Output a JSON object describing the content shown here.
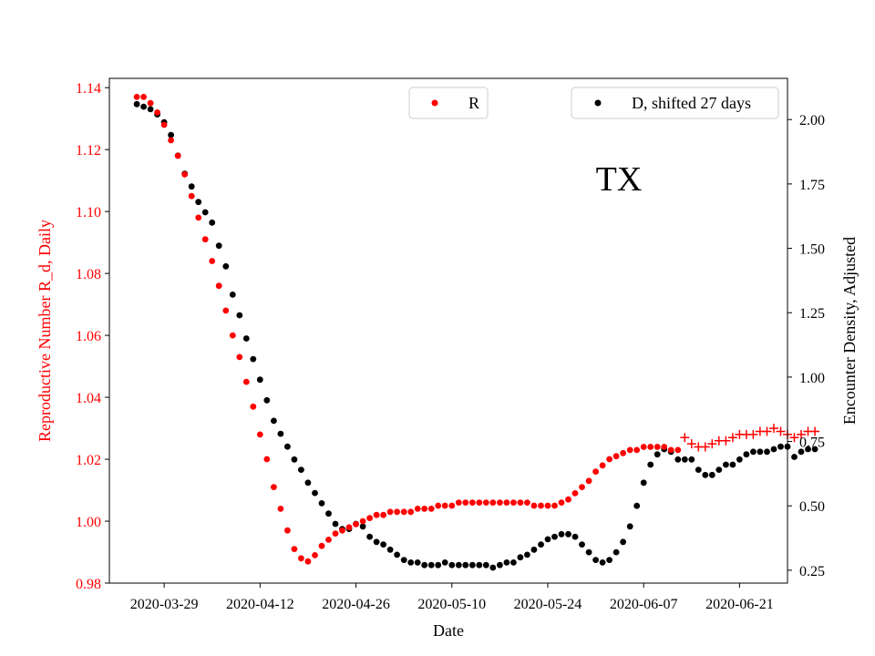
{
  "chart_data": {
    "type": "scatter",
    "title": "",
    "annotation": "TX",
    "xlabel": "Date",
    "ylabel_left": "Reproductive Number R_d, Daily",
    "ylabel_right": "Encounter Density, Adjusted",
    "x_range": [
      "2020-03-21",
      "2020-06-28"
    ],
    "ylim_left": [
      0.98,
      1.143
    ],
    "ylim_right": [
      0.2,
      2.16
    ],
    "x_ticks": [
      "2020-03-29",
      "2020-04-12",
      "2020-04-26",
      "2020-05-10",
      "2020-05-24",
      "2020-06-07",
      "2020-06-21"
    ],
    "y_ticks_left": [
      "0.98",
      "1.00",
      "1.02",
      "1.04",
      "1.06",
      "1.08",
      "1.10",
      "1.12",
      "1.14"
    ],
    "y_ticks_right": [
      "0.25",
      "0.50",
      "0.75",
      "1.00",
      "1.25",
      "1.50",
      "1.75",
      "2.00"
    ],
    "legend": [
      {
        "label": "R",
        "color": "#ff0000",
        "marker": "dot",
        "position": "top-center"
      },
      {
        "label": "D, shifted 27 days",
        "color": "#000000",
        "marker": "dot",
        "position": "top-right"
      }
    ],
    "colors": {
      "R": "#ff0000",
      "D": "#000000",
      "left_axis": "#ff0000"
    },
    "start_date": "2020-03-25",
    "series": [
      {
        "name": "R",
        "axis": "left",
        "marker": "dot",
        "color": "#ff0000",
        "values": [
          1.137,
          1.137,
          1.135,
          1.132,
          1.128,
          1.123,
          1.118,
          1.112,
          1.105,
          1.098,
          1.091,
          1.084,
          1.076,
          1.068,
          1.06,
          1.053,
          1.045,
          1.037,
          1.028,
          1.02,
          1.011,
          1.004,
          0.997,
          0.991,
          0.988,
          0.987,
          0.989,
          0.992,
          0.994,
          0.996,
          0.997,
          0.998,
          0.999,
          1.0,
          1.001,
          1.002,
          1.002,
          1.003,
          1.003,
          1.003,
          1.003,
          1.004,
          1.004,
          1.004,
          1.005,
          1.005,
          1.005,
          1.006,
          1.006,
          1.006,
          1.006,
          1.006,
          1.006,
          1.006,
          1.006,
          1.006,
          1.006,
          1.006,
          1.005,
          1.005,
          1.005,
          1.005,
          1.006,
          1.007,
          1.009,
          1.011,
          1.013,
          1.016,
          1.018,
          1.02,
          1.021,
          1.022,
          1.023,
          1.023,
          1.024,
          1.024,
          1.024,
          1.024,
          1.023,
          1.023
        ]
      },
      {
        "name": "R",
        "axis": "left",
        "marker": "plus",
        "color": "#ff0000",
        "values": [
          1.027,
          1.025,
          1.024,
          1.024,
          1.025,
          1.026,
          1.026,
          1.027,
          1.028,
          1.028,
          1.028,
          1.029,
          1.029,
          1.03,
          1.029,
          1.028,
          1.027,
          1.028,
          1.029,
          1.029
        ]
      },
      {
        "name": "D, shifted 27 days",
        "axis": "right",
        "marker": "dot",
        "color": "#000000",
        "values": [
          2.06,
          2.05,
          2.04,
          2.02,
          1.99,
          1.94,
          1.86,
          1.79,
          1.74,
          1.68,
          1.64,
          1.6,
          1.51,
          1.43,
          1.32,
          1.24,
          1.15,
          1.07,
          0.99,
          0.91,
          0.83,
          0.78,
          0.73,
          0.68,
          0.64,
          0.59,
          0.55,
          0.51,
          0.47,
          0.43,
          0.41,
          0.41,
          0.43,
          0.42,
          0.38,
          0.36,
          0.35,
          0.33,
          0.31,
          0.29,
          0.28,
          0.28,
          0.27,
          0.27,
          0.27,
          0.28,
          0.27,
          0.27,
          0.27,
          0.27,
          0.27,
          0.27,
          0.26,
          0.27,
          0.28,
          0.28,
          0.3,
          0.31,
          0.33,
          0.35,
          0.37,
          0.38,
          0.39,
          0.39,
          0.38,
          0.35,
          0.32,
          0.29,
          0.28,
          0.29,
          0.32,
          0.36,
          0.42,
          0.5,
          0.59,
          0.66,
          0.7,
          0.72,
          0.71,
          0.68,
          0.68,
          0.68,
          0.64,
          0.62,
          0.62,
          0.64,
          0.66,
          0.66,
          0.68,
          0.7,
          0.71,
          0.71,
          0.71,
          0.72,
          0.73,
          0.73,
          0.69,
          0.71,
          0.72,
          0.72
        ]
      }
    ]
  }
}
